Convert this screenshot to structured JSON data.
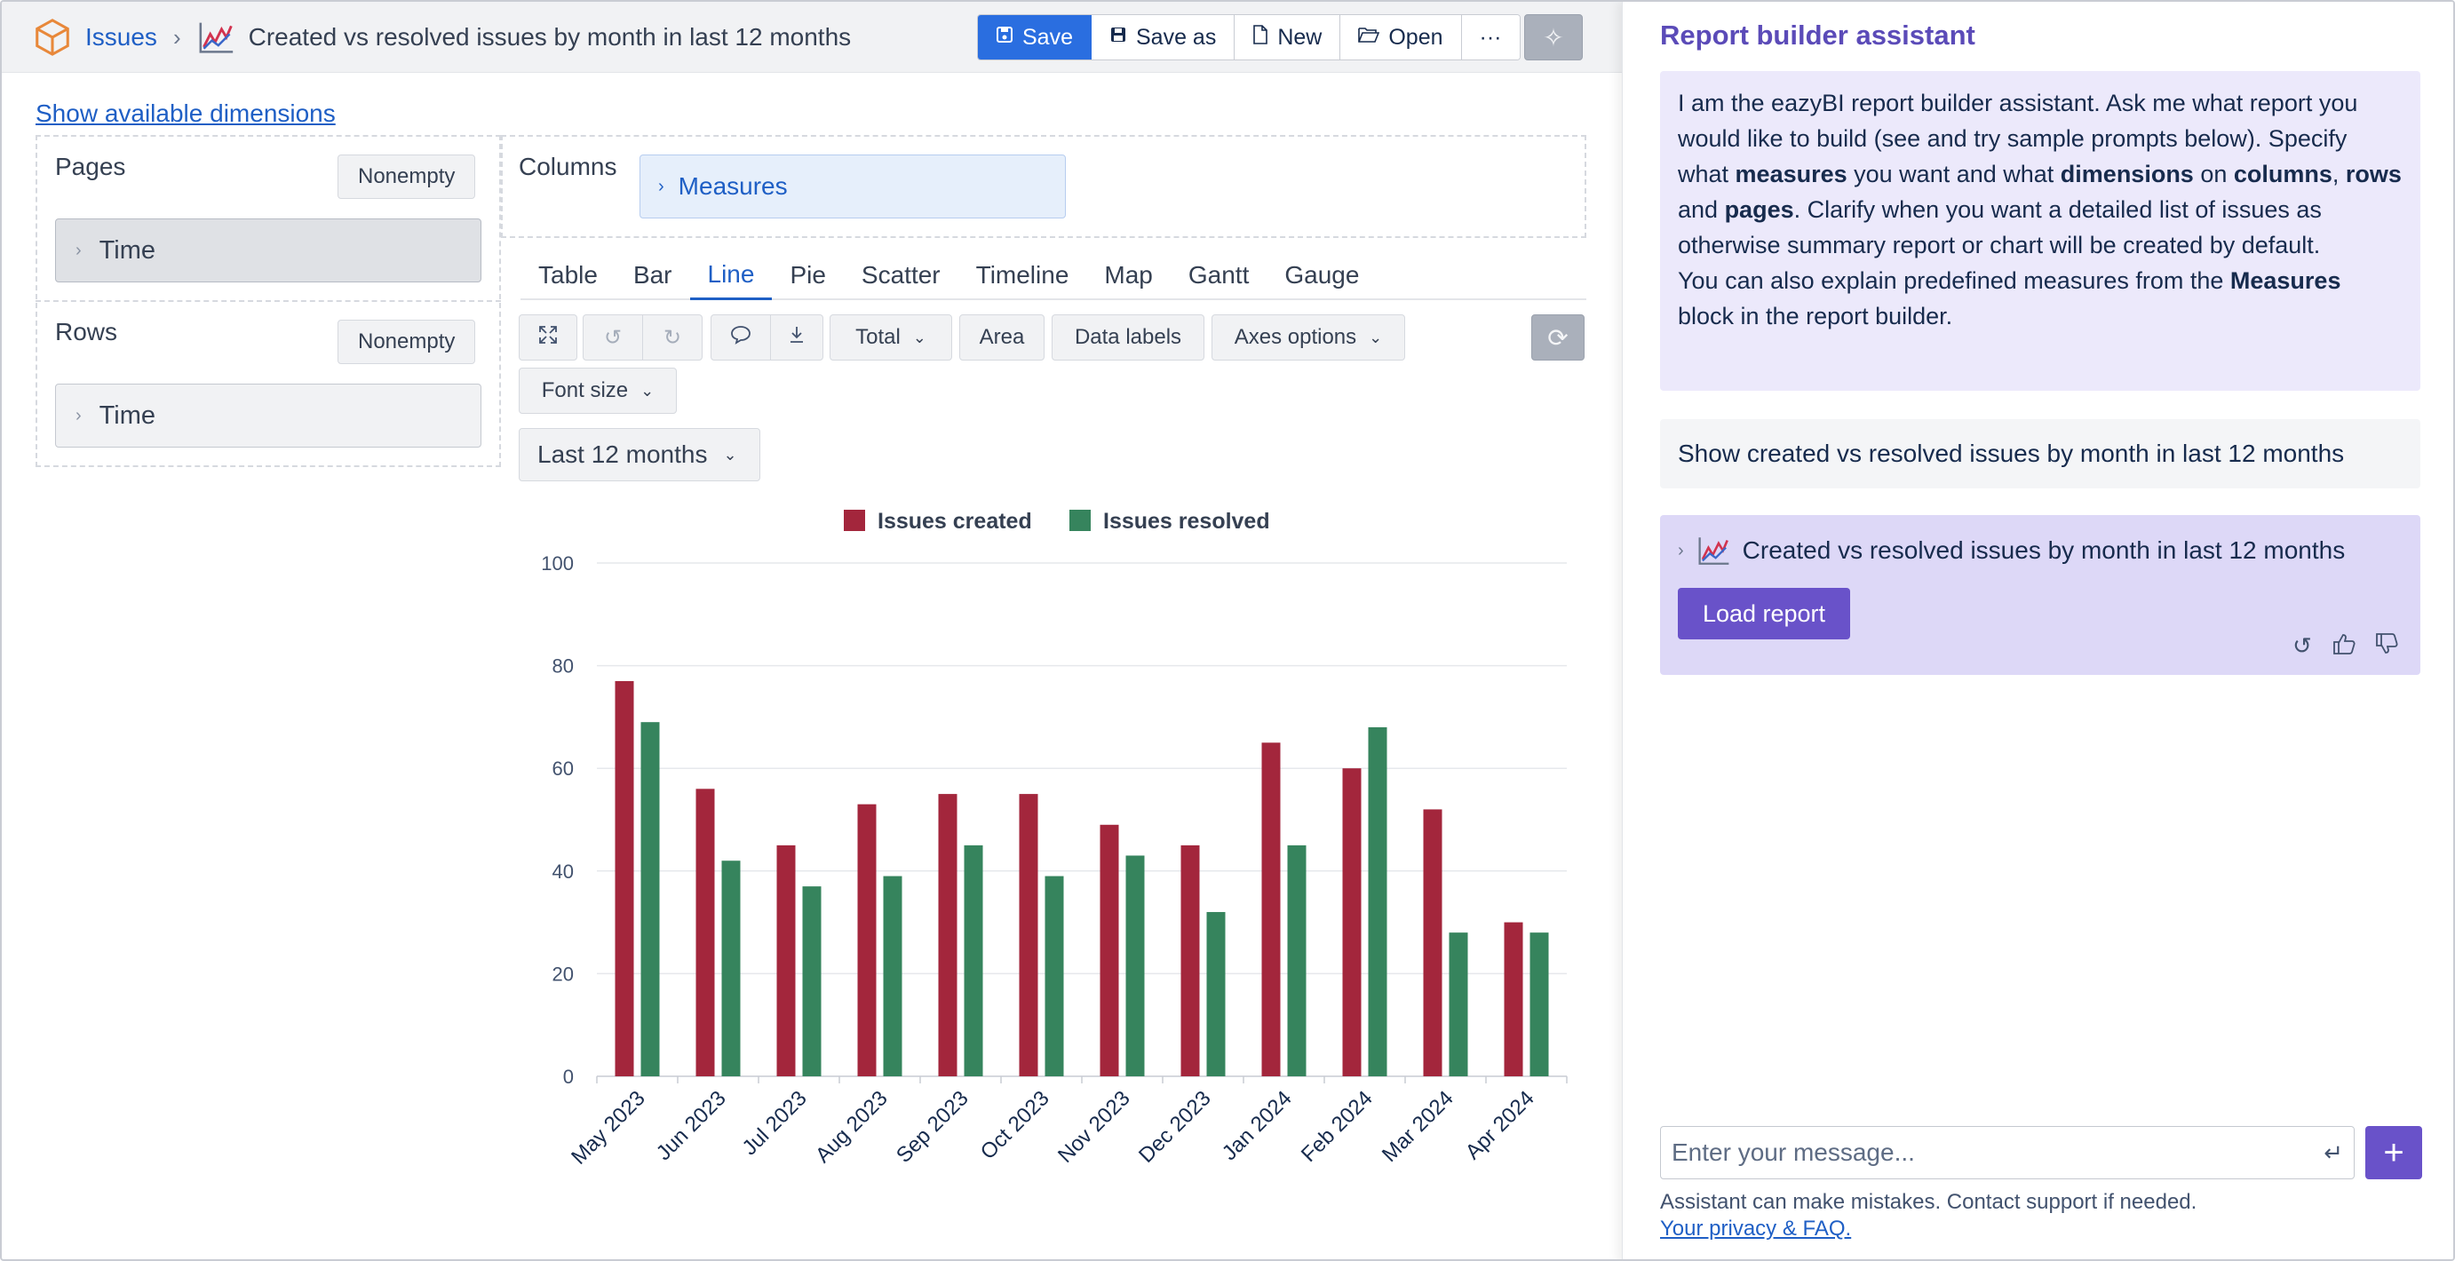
{
  "header": {
    "breadcrumb_root": "Issues",
    "report_title": "Created vs resolved issues by month in last 12 months",
    "buttons": {
      "save": "Save",
      "save_as": "Save as",
      "new": "New",
      "open": "Open",
      "more": "···"
    }
  },
  "builder": {
    "show_dimensions_link": "Show available dimensions",
    "pages": {
      "label": "Pages",
      "nonempty": "Nonempty",
      "dimension": "Time"
    },
    "rows": {
      "label": "Rows",
      "nonempty": "Nonempty",
      "dimension": "Time"
    },
    "columns": {
      "label": "Columns",
      "dimension": "Measures"
    }
  },
  "view_tabs": {
    "items": [
      "Table",
      "Bar",
      "Line",
      "Pie",
      "Scatter",
      "Timeline",
      "Map",
      "Gantt",
      "Gauge"
    ],
    "active": "Line"
  },
  "chart_toolbar": {
    "total": "Total",
    "area": "Area",
    "data_labels": "Data labels",
    "axes_options": "Axes options",
    "font_size": "Font size"
  },
  "period_select": {
    "value": "Last 12 months"
  },
  "chart_data": {
    "type": "bar",
    "categories": [
      "May 2023",
      "Jun 2023",
      "Jul 2023",
      "Aug 2023",
      "Sep 2023",
      "Oct 2023",
      "Nov 2023",
      "Dec 2023",
      "Jan 2024",
      "Feb 2024",
      "Mar 2024",
      "Apr 2024"
    ],
    "series": [
      {
        "name": "Issues created",
        "color": "#a3263c",
        "values": [
          77,
          56,
          45,
          53,
          55,
          55,
          49,
          45,
          65,
          60,
          52,
          30
        ]
      },
      {
        "name": "Issues resolved",
        "color": "#36845d",
        "values": [
          69,
          42,
          37,
          39,
          45,
          39,
          43,
          32,
          45,
          68,
          28,
          28
        ]
      }
    ],
    "ylim": [
      0,
      100
    ],
    "yticks": [
      0,
      20,
      40,
      60,
      80,
      100
    ],
    "grid": true,
    "legend_position": "top-center"
  },
  "assistant": {
    "title": "Report builder assistant",
    "intro": {
      "p1_a": "I am the eazyBI report builder assistant. Ask me what report you would like to build (see and try sample prompts below). Specify what ",
      "p1_measures": "measures",
      "p1_b": " you want and what ",
      "p1_dimensions": "dimensions",
      "p1_c": " on ",
      "p1_columns": "columns",
      "p1_d": ", ",
      "p1_rows": "rows",
      "p1_e": " and ",
      "p1_pages": "pages",
      "p1_f": ". Clarify when you want a detailed list of issues as otherwise summary report or chart will be created by default.",
      "p2_a": "You can also explain predefined measures from the ",
      "p2_measures": "Measures",
      "p2_b": " block in the report builder."
    },
    "user_message": "Show created vs resolved issues by month in last 12 months",
    "reply": {
      "report_name": "Created vs resolved issues by month in last 12 months",
      "load_button": "Load report"
    },
    "input_placeholder": "Enter your message...",
    "disclaimer": "Assistant can make mistakes. Contact support if needed.",
    "privacy_link": "Your privacy & FAQ."
  }
}
